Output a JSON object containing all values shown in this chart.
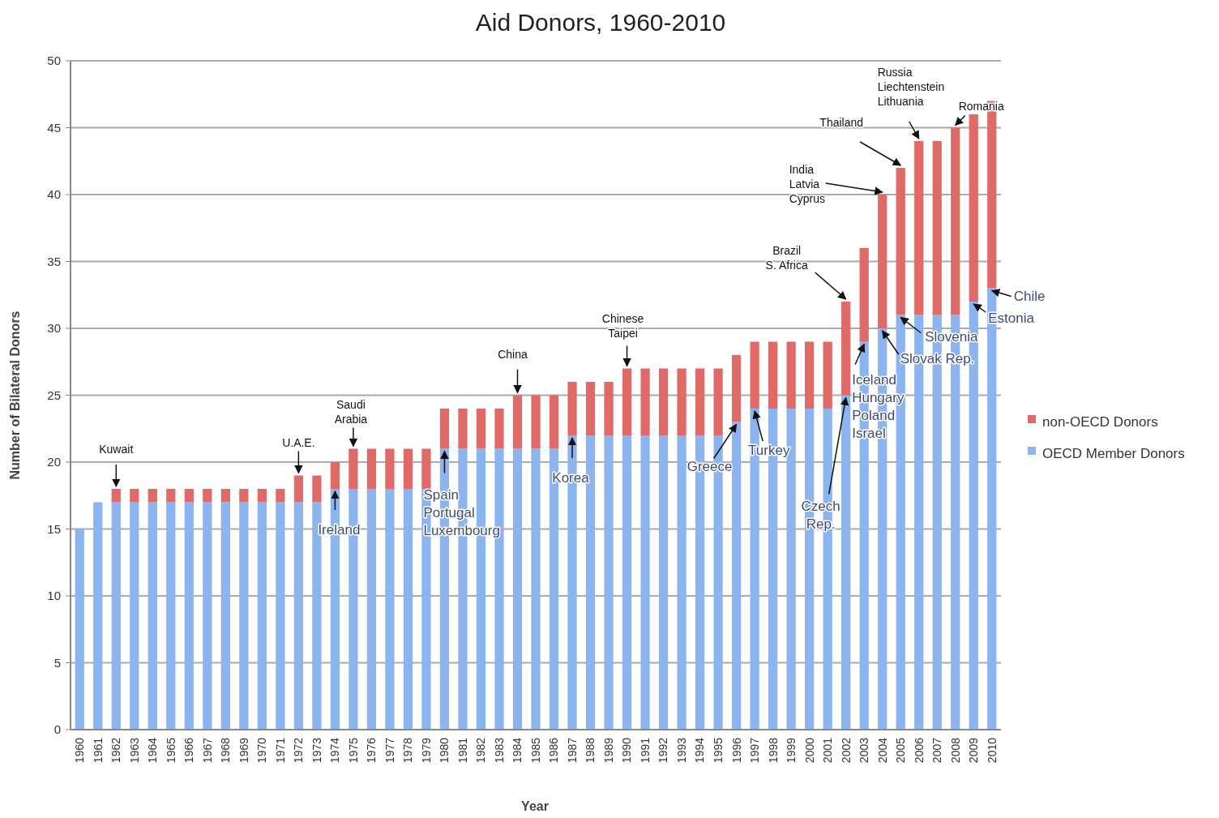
{
  "chart_data": {
    "type": "bar",
    "stacked": true,
    "title": "Aid Donors, 1960-2010",
    "xlabel": "Year",
    "ylabel": "Number of Bilateral Donors",
    "categories": [
      "1960",
      "1961",
      "1962",
      "1963",
      "1964",
      "1965",
      "1966",
      "1967",
      "1968",
      "1969",
      "1970",
      "1971",
      "1972",
      "1973",
      "1974",
      "1975",
      "1976",
      "1977",
      "1978",
      "1979",
      "1980",
      "1981",
      "1982",
      "1983",
      "1984",
      "1985",
      "1986",
      "1987",
      "1988",
      "1989",
      "1990",
      "1991",
      "1992",
      "1993",
      "1994",
      "1995",
      "1996",
      "1997",
      "1998",
      "1999",
      "2000",
      "2001",
      "2002",
      "2003",
      "2004",
      "2005",
      "2006",
      "2007",
      "2008",
      "2009",
      "2010"
    ],
    "series": [
      {
        "name": "OECD Member Donors",
        "color": "#8cb4ee",
        "values": [
          15,
          17,
          17,
          17,
          17,
          17,
          17,
          17,
          17,
          17,
          17,
          17,
          17,
          17,
          18,
          18,
          18,
          18,
          18,
          18,
          21,
          21,
          21,
          21,
          21,
          21,
          21,
          22,
          22,
          22,
          22,
          22,
          22,
          22,
          22,
          22,
          23,
          24,
          24,
          24,
          24,
          24,
          25,
          29,
          30,
          31,
          31,
          31,
          31,
          32,
          33
        ]
      },
      {
        "name": "non-OECD Donors",
        "color": "#e06a68",
        "values": [
          0,
          0,
          1,
          1,
          1,
          1,
          1,
          1,
          1,
          1,
          1,
          1,
          2,
          2,
          2,
          3,
          3,
          3,
          3,
          3,
          3,
          3,
          3,
          3,
          4,
          4,
          4,
          4,
          4,
          4,
          5,
          5,
          5,
          5,
          5,
          5,
          5,
          5,
          5,
          5,
          5,
          5,
          7,
          7,
          10,
          11,
          13,
          13,
          14,
          14,
          14
        ]
      }
    ],
    "ylim": [
      0,
      50
    ],
    "yticks": [
      0,
      5,
      10,
      15,
      20,
      25,
      30,
      35,
      40,
      45,
      50
    ],
    "grid": "y",
    "legend": "right",
    "annotations": [
      {
        "text": "Kuwait",
        "x": "1962",
        "y": 18
      },
      {
        "text": "U.A.E.",
        "x": "1972",
        "y": 19
      },
      {
        "text": "Saudi\nArabia",
        "x": "1975",
        "y": 21
      },
      {
        "text": "Ireland",
        "x": "1974",
        "y": 18
      },
      {
        "text": "Spain\nPortugal\nLuxembourg",
        "x": "1980",
        "y": 21
      },
      {
        "text": "China",
        "x": "1984",
        "y": 25
      },
      {
        "text": "Korea",
        "x": "1987",
        "y": 22
      },
      {
        "text": "Chinese\nTaipei",
        "x": "1990",
        "y": 27
      },
      {
        "text": "Greece",
        "x": "1996",
        "y": 23
      },
      {
        "text": "Turkey",
        "x": "1997",
        "y": 24
      },
      {
        "text": "Brazil\nS. Africa",
        "x": "2002",
        "y": 32
      },
      {
        "text": "India\nLatvia\nCyprus",
        "x": "2004",
        "y": 40
      },
      {
        "text": "Thailand",
        "x": "2005",
        "y": 42
      },
      {
        "text": "Russia\nLiechtenstein\nLithuania",
        "x": "2006",
        "y": 44
      },
      {
        "text": "Romania",
        "x": "2008",
        "y": 45
      },
      {
        "text": "Czech\nRep.",
        "x": "2002",
        "y": 25
      },
      {
        "text": "Iceland\nHungary\nPoland\nIsrael",
        "x": "2003",
        "y": 29
      },
      {
        "text": "Slovak Rep.",
        "x": "2004",
        "y": 30
      },
      {
        "text": "Slovenia",
        "x": "2005",
        "y": 31
      },
      {
        "text": "Estonia",
        "x": "2009",
        "y": 32
      },
      {
        "text": "Chile",
        "x": "2010",
        "y": 33
      }
    ]
  }
}
